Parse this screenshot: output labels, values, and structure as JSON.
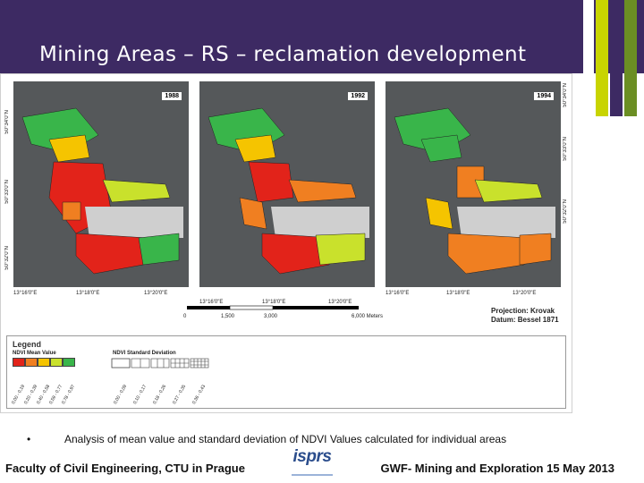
{
  "header": {
    "title": "Mining Areas – RS – reclamation development",
    "background": "#3d2a63",
    "stripes": [
      "#ffffff",
      "#c8d400",
      "#3d2a63",
      "#6b8e23"
    ]
  },
  "maps": [
    {
      "year": "1988",
      "lat_top": "50°34'0\"N",
      "lat_mid": "50°33'0\"N",
      "lat_bot": "50°32'0\"N",
      "lons": [
        "13°16'0\"E",
        "13°18'0\"E",
        "13°20'0\"E"
      ]
    },
    {
      "year": "1992",
      "lat_top": "",
      "lat_mid": "",
      "lat_bot": "",
      "lons": [
        "13°16'0\"E",
        "13°18'0\"E",
        "13°20'0\"E"
      ]
    },
    {
      "year": "1994",
      "lat_top": "50°34'0\"N",
      "lat_mid": "50°33'0\"N",
      "lat_bot": "50°32'0\"N",
      "lons": [
        "13°16'0\"E",
        "13°18'0\"E",
        "13°20'0\"E"
      ]
    }
  ],
  "scale": {
    "ticks": [
      "0",
      "1,500",
      "3,000",
      "6,000 Meters"
    ]
  },
  "projection": {
    "line1": "Projection: Krovak",
    "line2": "Datum: Bessel 1871"
  },
  "legend": {
    "title": "Legend",
    "mean_title": "NDVI Mean Value",
    "std_title": "NDVI Standard Deviation",
    "mean_colors": [
      "#e2231a",
      "#f07f21",
      "#f5c400",
      "#c9e12c",
      "#39b54a"
    ],
    "mean_ticks": [
      "0,00 - 0,19",
      "0,20 - 0,39",
      "0,40 - 0,58",
      "0,59 - 0,77",
      "0,78 - 0,97"
    ],
    "std_ticks": [
      "0,00 - 0,09",
      "0,10 - 0,17",
      "0,18 - 0,26",
      "0,27 - 0,35",
      "0,36 - 0,43"
    ]
  },
  "bullet": {
    "symbol": "•",
    "text": "Analysis of mean value and standard deviation of  NDVI Values calculated for individual areas"
  },
  "footer": {
    "left": "Faculty of Civil Engineering, CTU in Prague",
    "logo": "isprs",
    "right": "GWF- Mining and Exploration 15 May 2013"
  }
}
